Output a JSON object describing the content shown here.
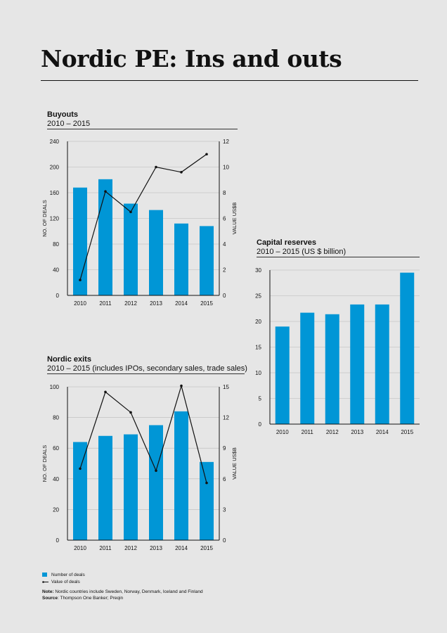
{
  "page": {
    "title": "Nordic PE: Ins and outs"
  },
  "buyouts": {
    "title": "Buyouts",
    "subtitle": "2010 – 2015"
  },
  "reserves": {
    "title": "Capital reserves",
    "subtitle": "2010 – 2015 (US $ billion)"
  },
  "exits": {
    "title": "Nordic exits",
    "subtitle": "2010 – 2015 (includes IPOs, secondary sales, trade sales)"
  },
  "legend": {
    "deals": "Number of deals",
    "value": "Value of deals"
  },
  "notes": {
    "note_label": "Note:",
    "note_text": " Nordic countries include Sweden, Norway, Denmark, Iceland and Finland",
    "source_label": "Source",
    "source_text": ": Thompson One Banker; Preqin"
  },
  "colors": {
    "bar": "#0096d6",
    "line": "#111111"
  },
  "chart_data": [
    {
      "id": "buyouts",
      "type": "bar",
      "title": "Buyouts",
      "subtitle": "2010 – 2015",
      "categories": [
        "2010",
        "2011",
        "2012",
        "2013",
        "2014",
        "2015"
      ],
      "series": [
        {
          "name": "Number of deals",
          "type": "bar",
          "axis": "left",
          "values": [
            168,
            181,
            143,
            133,
            112,
            108
          ]
        },
        {
          "name": "Value of deals",
          "type": "line",
          "axis": "right",
          "values": [
            1.2,
            8.1,
            6.5,
            10.0,
            9.6,
            11.0
          ]
        }
      ],
      "ylabel": "NO. OF DEALS",
      "y2label": "VALUE US$B",
      "ylim": [
        0,
        240
      ],
      "yticks": [
        0,
        40,
        80,
        120,
        160,
        200,
        240
      ],
      "y2lim": [
        0,
        12
      ],
      "y2ticks": [
        0,
        2,
        4,
        6,
        8,
        10,
        12
      ],
      "grid": true
    },
    {
      "id": "reserves",
      "type": "bar",
      "title": "Capital reserves",
      "subtitle": "2010 – 2015 (US $ billion)",
      "categories": [
        "2010",
        "2011",
        "2012",
        "2013",
        "2014",
        "2015"
      ],
      "series": [
        {
          "name": "Capital reserves",
          "type": "bar",
          "axis": "left",
          "values": [
            19.0,
            21.7,
            21.4,
            23.3,
            23.3,
            29.5
          ]
        }
      ],
      "ylim": [
        0,
        30
      ],
      "yticks": [
        0,
        5,
        10,
        15,
        20,
        25,
        30
      ],
      "grid": true
    },
    {
      "id": "exits",
      "type": "bar",
      "title": "Nordic exits",
      "subtitle": "2010 – 2015 (includes IPOs, secondary sales, trade sales)",
      "categories": [
        "2010",
        "2011",
        "2012",
        "2013",
        "2014",
        "2015"
      ],
      "series": [
        {
          "name": "Number of deals",
          "type": "bar",
          "axis": "left",
          "values": [
            64,
            68,
            69,
            75,
            84,
            51
          ]
        },
        {
          "name": "Value of deals",
          "type": "line",
          "axis": "right",
          "values": [
            7.0,
            14.5,
            12.5,
            6.8,
            15.1,
            5.6
          ]
        }
      ],
      "ylabel": "NO. OF DEALS",
      "y2label": "VALUE US$B",
      "ylim": [
        0,
        100
      ],
      "yticks": [
        0,
        20,
        40,
        60,
        80,
        100
      ],
      "y2lim": [
        0,
        15
      ],
      "y2ticks": [
        0,
        3,
        6,
        9,
        12,
        15
      ],
      "grid": true
    }
  ]
}
